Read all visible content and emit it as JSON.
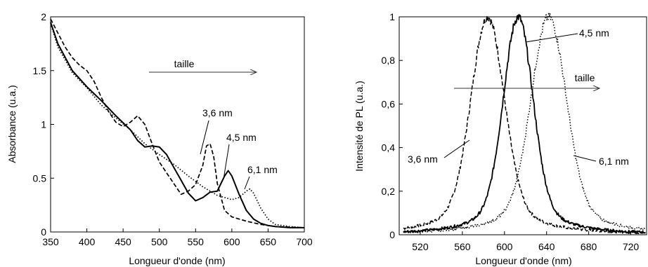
{
  "chart_data": [
    {
      "type": "line",
      "xlabel": "Longueur d'onde (nm)",
      "ylabel": "Absorbance (u.a.)",
      "xlim": [
        350,
        700
      ],
      "ylim": [
        0,
        2
      ],
      "x_ticks": [
        "350",
        "400",
        "450",
        "500",
        "550",
        "600",
        "650",
        "700"
      ],
      "y_ticks": [
        "0",
        "0.5",
        "1",
        "1.5",
        "2"
      ],
      "grid": false,
      "arrow_label": "taille",
      "series": [
        {
          "name": "3,6 nm",
          "style": "dashed",
          "x": [
            350,
            360,
            370,
            380,
            390,
            400,
            410,
            420,
            430,
            440,
            450,
            460,
            470,
            480,
            490,
            500,
            510,
            520,
            530,
            540,
            550,
            560,
            565,
            570,
            575,
            580,
            590,
            600,
            620,
            640,
            660,
            700
          ],
          "y": [
            1.98,
            1.85,
            1.72,
            1.62,
            1.55,
            1.5,
            1.4,
            1.25,
            1.12,
            1.02,
            0.98,
            1.02,
            1.08,
            1.0,
            0.82,
            0.65,
            0.55,
            0.45,
            0.35,
            0.38,
            0.44,
            0.62,
            0.8,
            0.82,
            0.7,
            0.45,
            0.2,
            0.14,
            0.1,
            0.07,
            0.05,
            0.04
          ]
        },
        {
          "name": "4,5 nm",
          "style": "solid",
          "x": [
            350,
            360,
            380,
            400,
            420,
            440,
            460,
            470,
            480,
            490,
            500,
            510,
            520,
            530,
            540,
            550,
            560,
            570,
            580,
            590,
            595,
            600,
            610,
            620,
            630,
            640,
            650,
            660,
            680,
            700
          ],
          "y": [
            1.95,
            1.75,
            1.5,
            1.35,
            1.22,
            1.08,
            0.95,
            0.85,
            0.79,
            0.8,
            0.79,
            0.72,
            0.6,
            0.48,
            0.36,
            0.29,
            0.32,
            0.37,
            0.38,
            0.52,
            0.57,
            0.52,
            0.35,
            0.2,
            0.12,
            0.08,
            0.06,
            0.05,
            0.04,
            0.04
          ]
        },
        {
          "name": "6,1 nm",
          "style": "dotted",
          "x": [
            350,
            360,
            380,
            400,
            420,
            440,
            460,
            480,
            500,
            520,
            540,
            560,
            580,
            600,
            610,
            620,
            625,
            630,
            640,
            650,
            660,
            680,
            700
          ],
          "y": [
            1.94,
            1.72,
            1.48,
            1.34,
            1.18,
            1.06,
            0.95,
            0.82,
            0.72,
            0.63,
            0.52,
            0.42,
            0.34,
            0.3,
            0.32,
            0.38,
            0.4,
            0.36,
            0.22,
            0.12,
            0.07,
            0.05,
            0.04
          ]
        }
      ],
      "annotations": [
        "3,6 nm",
        "4,5 nm",
        "6,1 nm"
      ]
    },
    {
      "type": "line",
      "xlabel": "Longueur d'onde (nm)",
      "ylabel": "Intensité de PL (u.a.)",
      "xlim": [
        500,
        735
      ],
      "ylim": [
        0,
        1
      ],
      "x_ticks": [
        "520",
        "560",
        "600",
        "640",
        "680",
        "720"
      ],
      "y_ticks": [
        "0",
        "0,2",
        "0,4",
        "0,6",
        "0,8",
        "1"
      ],
      "grid": false,
      "arrow_label": "taille",
      "series": [
        {
          "name": "3,6 nm",
          "style": "dashed",
          "center": 584,
          "fwhm": 36
        },
        {
          "name": "4,5 nm",
          "style": "solid",
          "center": 613,
          "fwhm": 32
        },
        {
          "name": "6,1 nm",
          "style": "dotted",
          "center": 642,
          "fwhm": 38
        }
      ],
      "annotations": [
        "3,6 nm",
        "4,5 nm",
        "6,1 nm"
      ]
    }
  ]
}
